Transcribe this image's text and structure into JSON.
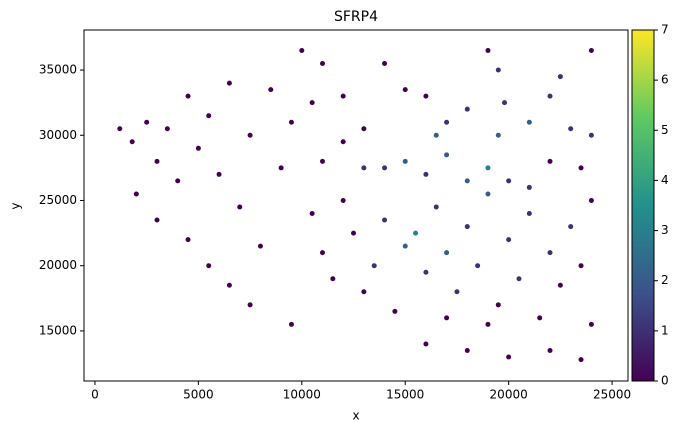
{
  "chart_data": {
    "type": "scatter",
    "title": "SFRP4",
    "x_label": "x",
    "y_label": "y",
    "xlim": [
      -530,
      25770
    ],
    "ylim": [
      11160,
      38070
    ],
    "xticks": [
      0,
      5000,
      10000,
      15000,
      20000,
      25000
    ],
    "yticks": [
      15000,
      20000,
      25000,
      30000,
      35000
    ],
    "colormap": "viridis",
    "clim": [
      0,
      7
    ],
    "cticks": [
      0,
      1,
      2,
      3,
      4,
      5,
      6,
      7
    ],
    "series": [
      {
        "x": [
          1200,
          1800,
          2500,
          3000,
          3500,
          4000,
          4500,
          5000,
          5500,
          6000,
          6500,
          7000,
          7500,
          2000,
          3000,
          4500,
          5500,
          6500,
          7500,
          8000,
          8500,
          9000,
          9500,
          10000,
          11000,
          12000,
          13000,
          14000,
          15000,
          10500,
          11000,
          11500,
          12000,
          12500,
          13000,
          13500,
          14000,
          14500,
          15000,
          15500,
          16000,
          16500,
          17000,
          17500,
          18000,
          18500,
          19000,
          19500,
          20000,
          20500,
          21000,
          21500,
          22000,
          22500,
          23000,
          23500,
          24000,
          24000,
          16000,
          18000,
          20000,
          22000,
          23500,
          19000,
          17000,
          14000,
          15000,
          16000,
          17000,
          18000,
          19000,
          20000,
          21000,
          19500,
          19800,
          19500,
          19000,
          21000,
          22000,
          22500,
          23000,
          24000,
          17000,
          16000,
          18000,
          16500,
          11000,
          12000,
          13000,
          9500,
          10500,
          24000,
          23500,
          22000
        ],
        "values": [
          30500,
          29500,
          31000,
          28000,
          30500,
          26500,
          33000,
          29000,
          31500,
          27000,
          34000,
          24500,
          30000,
          25500,
          23500,
          22000,
          20000,
          18500,
          17000,
          21500,
          33500,
          27500,
          15500,
          36500,
          35500,
          33000,
          30500,
          35500,
          33500,
          24000,
          21000,
          19000,
          25000,
          22500,
          18000,
          20000,
          23500,
          16500,
          21500,
          22500,
          19500,
          24500,
          21000,
          18000,
          23000,
          20000,
          25500,
          17000,
          22000,
          19000,
          24000,
          16000,
          21000,
          18500,
          23000,
          20000,
          25000,
          15500,
          14000,
          13500,
          13000,
          13500,
          12800,
          15500,
          16000,
          27500,
          28000,
          27000,
          28500,
          26500,
          27500,
          26500,
          26000,
          30000,
          32500,
          35000,
          36500,
          31000,
          33000,
          34500,
          30500,
          30000,
          31000,
          33000,
          32000,
          30000,
          28000,
          29500,
          27500,
          31000,
          32500,
          36500,
          27500,
          28000
        ],
        "color_values": [
          0,
          0,
          0,
          0,
          0,
          0,
          0,
          0,
          0,
          0,
          0,
          0,
          0,
          0,
          0,
          0,
          0,
          0,
          0,
          0,
          0,
          0,
          0,
          0,
          0,
          0,
          0,
          0,
          0,
          0,
          0,
          0,
          0,
          0,
          0,
          1,
          1,
          0,
          2,
          3,
          1,
          1,
          2,
          1,
          1,
          1,
          2,
          0,
          1,
          1,
          1,
          0,
          1,
          0,
          1,
          0,
          0,
          0,
          0,
          0,
          0,
          0,
          0,
          0,
          0,
          1,
          2,
          1,
          2,
          2,
          3,
          1,
          1,
          2,
          1,
          1,
          0,
          2,
          1,
          1,
          1,
          1,
          1,
          0,
          1,
          2,
          0,
          0,
          1,
          0,
          0,
          0,
          0,
          0
        ]
      }
    ]
  }
}
